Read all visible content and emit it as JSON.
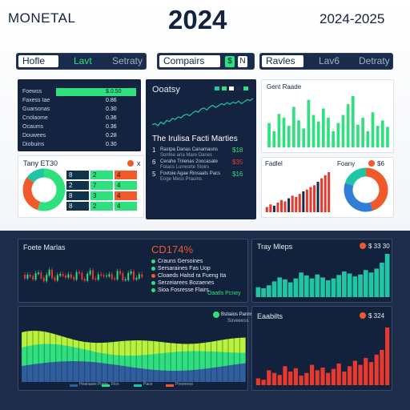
{
  "header": {
    "brand": "MONETAL",
    "year": "2024",
    "range": "2024-2025"
  },
  "colors": {
    "navy": "#1a2c4b",
    "green": "#2fe07e",
    "teal": "#1ec6a6",
    "orange": "#f05a2a",
    "red": "#e8392f",
    "blue": "#2f7fd8",
    "light_green": "#b9f23a"
  },
  "tabbars": [
    {
      "tabs": [
        {
          "label": "Hofle",
          "state": "active"
        },
        {
          "label": "Lavt",
          "state": "accent"
        },
        {
          "label": "Setraty",
          "state": "idle"
        }
      ]
    },
    {
      "tabs": [
        {
          "label": "Compairs",
          "state": "active"
        }
      ],
      "segments": [
        "$",
        "N"
      ]
    },
    {
      "tabs": [
        {
          "label": "Ravles",
          "state": "active"
        },
        {
          "label": "Lav6",
          "state": "idle"
        },
        {
          "label": "Detraty",
          "state": "idle"
        }
      ]
    }
  ],
  "table_panel": {
    "rows": [
      {
        "label": "Foewss",
        "value": "$.0.50"
      },
      {
        "label": "Faxess tae",
        "value": "0.86"
      },
      {
        "label": "Guarsonas",
        "value": "0.30"
      },
      {
        "label": "Cnolaome",
        "value": "0.36"
      },
      {
        "label": "Ocaums",
        "value": "0.36"
      },
      {
        "label": "Douwees",
        "value": "0.28"
      },
      {
        "label": "Diobuins",
        "value": "0.30"
      }
    ]
  },
  "donut_left": {
    "title": "Tany ET30",
    "segments": [
      {
        "value": 55,
        "color": "#2fe07e"
      },
      {
        "value": 30,
        "color": "#f05a2a"
      },
      {
        "value": 15,
        "color": "#1ec6a6"
      }
    ]
  },
  "grid_table": {
    "indicators": [
      "orange",
      "x"
    ],
    "rows": [
      [
        "8",
        "2",
        "4"
      ],
      [
        "2",
        "7",
        "4"
      ],
      [
        "8",
        "3",
        "4"
      ],
      [
        "8",
        "2",
        "4"
      ]
    ]
  },
  "center_panel": {
    "title": "Ooatsy",
    "legend": [
      "",
      "",
      "",
      "",
      ""
    ],
    "line_values": [
      40,
      42,
      38,
      45,
      41,
      48,
      46,
      52,
      50,
      55,
      53,
      58,
      60,
      57,
      62,
      66,
      64,
      70,
      72,
      68,
      74,
      77,
      73,
      76,
      80,
      78,
      82,
      79,
      83,
      81,
      85,
      80,
      84,
      88,
      86,
      90
    ],
    "section_title": "The Irulisa Facti Marties",
    "items": [
      {
        "num": "1",
        "text": "Rastpa Danas Canamauns",
        "sub": "Sonfee aria Mare Danes",
        "value": "$18",
        "vcolor": "#2fe07e"
      },
      {
        "num": "6",
        "text": "Cerahe Tnlenas 2oocasate",
        "sub": "Fotacs Lurreorte Stoirs",
        "value": "$35",
        "vcolor": "#e8392f"
      },
      {
        "num": "5",
        "text": "Fovtoie Agae Rinsaats Pacs",
        "sub": "Eoge Mess Prauins",
        "value": "$16",
        "vcolor": "#2fe07e"
      }
    ]
  },
  "right_bar": {
    "title": "Gent Raade",
    "values": [
      45,
      30,
      62,
      55,
      40,
      75,
      50,
      35,
      88,
      60,
      48,
      72,
      55,
      30,
      45,
      60,
      80,
      95,
      42,
      55,
      30,
      65,
      40,
      50,
      38
    ]
  },
  "right_bottom": {
    "title": "Fadlel",
    "title2": "Foany",
    "badge": "$6",
    "bar_values": [
      12,
      18,
      15,
      22,
      28,
      25,
      32,
      38,
      35,
      42,
      48,
      52,
      58,
      62,
      70,
      78,
      85,
      92
    ],
    "donut": [
      {
        "value": 45,
        "color": "#f05a2a"
      },
      {
        "value": 35,
        "color": "#2f7fd8"
      },
      {
        "value": 20,
        "color": "#1ec6a6"
      }
    ]
  },
  "bottom": {
    "candle_panel": {
      "title": "Foete Marlas",
      "badge": "CD174%",
      "items": [
        {
          "text": "Crauns Gersoines",
          "color": "#2fe07e"
        },
        {
          "text": "Sersaraines Fas Uop",
          "color": "#2fe07e"
        },
        {
          "text": "Cloaeds Halsd ra Fueng Ita",
          "color": "#f05a2a"
        },
        {
          "text": "Serzeiarees Bozaenes",
          "color": "#2fe07e"
        },
        {
          "text": "Sioa Fosresse Flairs",
          "color": "#2fe07e"
        }
      ],
      "footer": "Oaatls Pcney"
    },
    "maps_panel": {
      "title": "Tray Mleps",
      "badge": "$ 33 30",
      "values": [
        20,
        18,
        24,
        32,
        40,
        36,
        30,
        38,
        50,
        44,
        38,
        46,
        40,
        34,
        38,
        45,
        52,
        48,
        42,
        46,
        55,
        50,
        58,
        70,
        88
      ]
    },
    "area_panel": {
      "legend": [
        "Hoaraues Pcnts",
        "Ftcs",
        "Pace",
        "Preonwss"
      ],
      "tooltip": "Bstiaios Panns Pace",
      "tooltip_sub": "Soveeess"
    },
    "lower_right": {
      "title": "Eaabilts",
      "badge": "$ 324",
      "values": [
        10,
        8,
        22,
        18,
        15,
        28,
        20,
        25,
        14,
        18,
        30,
        22,
        26,
        18,
        24,
        32,
        20,
        28,
        36,
        30,
        40,
        34,
        45,
        52,
        85
      ]
    }
  }
}
